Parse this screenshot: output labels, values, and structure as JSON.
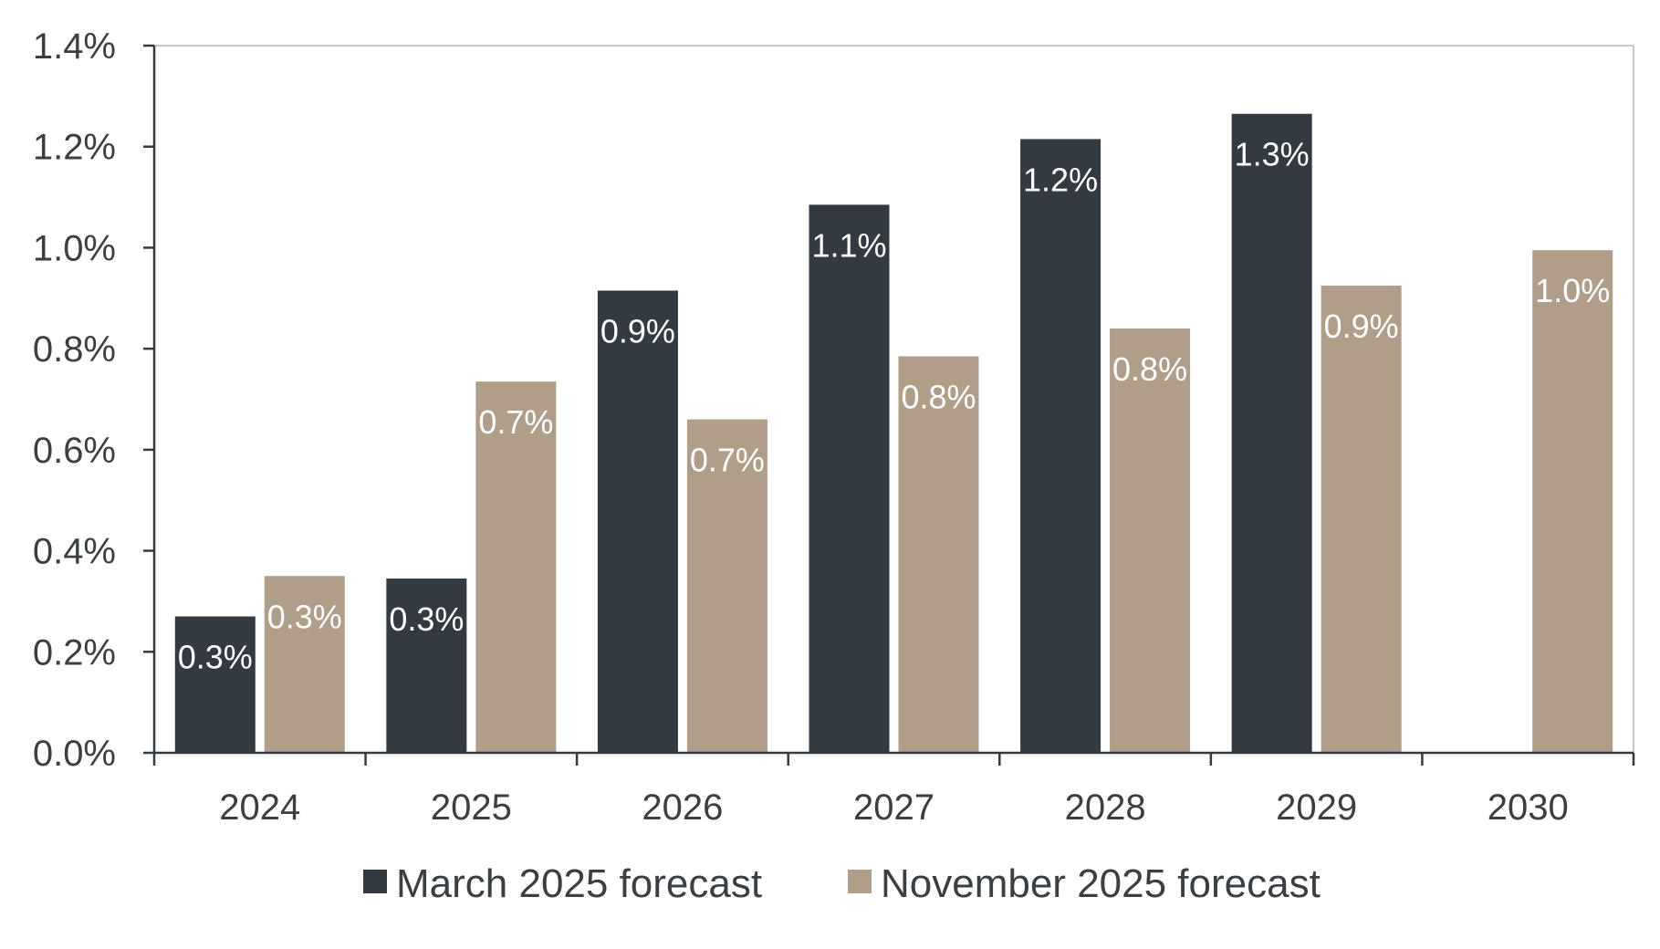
{
  "chart_data": {
    "type": "bar",
    "categories": [
      "2024",
      "2025",
      "2026",
      "2027",
      "2028",
      "2029",
      "2030"
    ],
    "series": [
      {
        "name": "March 2025 forecast",
        "color": "#333a41",
        "values": [
          0.27,
          0.345,
          0.915,
          1.085,
          1.215,
          1.265,
          null
        ],
        "labels": [
          "0.3%",
          "0.3%",
          "0.9%",
          "1.1%",
          "1.2%",
          "1.3%",
          ""
        ]
      },
      {
        "name": "November 2025 forecast",
        "color": "#b19e88",
        "values": [
          0.35,
          0.735,
          0.66,
          0.785,
          0.84,
          0.925,
          0.995
        ],
        "labels": [
          "0.3%",
          "0.7%",
          "0.7%",
          "0.8%",
          "0.8%",
          "0.9%",
          "1.0%"
        ]
      }
    ],
    "y_ticks": [
      "0.0%",
      "0.2%",
      "0.4%",
      "0.6%",
      "0.8%",
      "1.0%",
      "1.2%",
      "1.4%"
    ],
    "ylim": [
      0,
      1.4
    ],
    "title": "",
    "xlabel": "",
    "ylabel": "",
    "grid": false,
    "legend_position": "bottom-center"
  }
}
